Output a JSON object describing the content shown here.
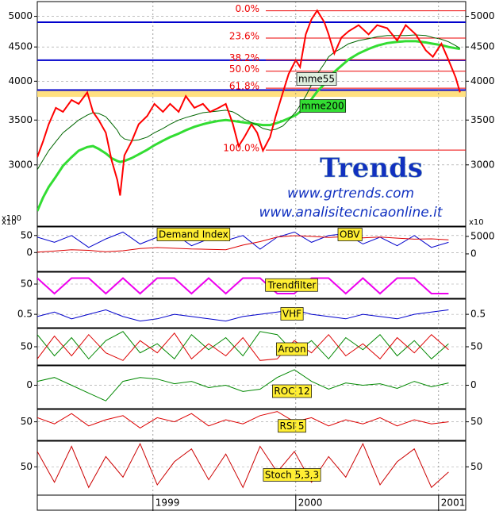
{
  "chart_data": [
    {
      "type": "line",
      "log_scale": true,
      "mirror_ticks": true,
      "y_unit": "x100",
      "xlim": [
        1998.19,
        2001.19
      ],
      "xticks": [
        1999,
        2000,
        2001
      ],
      "ylim": [
        2430,
        5260
      ],
      "yticks": [
        3000,
        3500,
        4000,
        4500,
        5000
      ],
      "x": [
        1998.19,
        1998.23,
        1998.27,
        1998.32,
        1998.37,
        1998.43,
        1998.48,
        1998.54,
        1998.58,
        1998.62,
        1998.67,
        1998.71,
        1998.75,
        1998.77,
        1998.8,
        1998.85,
        1998.9,
        1998.96,
        1999.01,
        1999.07,
        1999.12,
        1999.18,
        1999.23,
        1999.29,
        1999.35,
        1999.4,
        1999.46,
        1999.51,
        1999.56,
        1999.6,
        1999.64,
        1999.69,
        1999.73,
        1999.77,
        1999.82,
        1999.86,
        1999.91,
        1999.95,
        2000.0,
        2000.03,
        2000.07,
        2000.11,
        2000.15,
        2000.2,
        2000.23,
        2000.27,
        2000.32,
        2000.37,
        2000.44,
        2000.51,
        2000.57,
        2000.64,
        2000.71,
        2000.77,
        2000.84,
        2000.91,
        2000.96,
        2001.02,
        2001.07,
        2001.12,
        2001.15
      ],
      "series": [
        {
          "color": "#33dd33",
          "width": 3,
          "values": [
            2560,
            2680,
            2780,
            2880,
            2990,
            3080,
            3150,
            3190,
            3200,
            3170,
            3120,
            3070,
            3040,
            3030,
            3040,
            3070,
            3110,
            3160,
            3210,
            3260,
            3300,
            3340,
            3380,
            3420,
            3450,
            3470,
            3490,
            3500,
            3490,
            3480,
            3470,
            3460,
            3450,
            3440,
            3440,
            3460,
            3490,
            3520,
            3560,
            3600,
            3670,
            3760,
            3860,
            3960,
            4050,
            4130,
            4220,
            4310,
            4400,
            4470,
            4520,
            4560,
            4580,
            4590,
            4590,
            4570,
            4550,
            4530,
            4500,
            4480,
            4470
          ]
        },
        {
          "color": "#006600",
          "width": 1,
          "values": [
            2950,
            3050,
            3150,
            3250,
            3350,
            3430,
            3500,
            3560,
            3590,
            3580,
            3540,
            3460,
            3380,
            3320,
            3280,
            3260,
            3270,
            3300,
            3350,
            3400,
            3450,
            3500,
            3530,
            3560,
            3590,
            3600,
            3610,
            3620,
            3600,
            3560,
            3510,
            3470,
            3440,
            3400,
            3380,
            3390,
            3430,
            3500,
            3600,
            3680,
            3800,
            3950,
            4100,
            4250,
            4350,
            4420,
            4480,
            4550,
            4600,
            4630,
            4660,
            4680,
            4680,
            4680,
            4690,
            4680,
            4650,
            4620,
            4580,
            4520,
            4480
          ]
        },
        {
          "color": "#ff0000",
          "width": 2,
          "values": [
            3080,
            3250,
            3450,
            3650,
            3600,
            3750,
            3700,
            3850,
            3600,
            3500,
            3350,
            3050,
            2850,
            2700,
            3100,
            3250,
            3450,
            3550,
            3700,
            3600,
            3700,
            3600,
            3800,
            3650,
            3700,
            3600,
            3650,
            3700,
            3450,
            3200,
            3300,
            3450,
            3350,
            3150,
            3300,
            3550,
            3850,
            4100,
            4300,
            4200,
            4700,
            4950,
            5100,
            4900,
            4700,
            4400,
            4650,
            4750,
            4850,
            4700,
            4850,
            4800,
            4600,
            4850,
            4700,
            4450,
            4350,
            4550,
            4300,
            4050,
            3850
          ]
        }
      ],
      "band": [
        3790,
        3870
      ],
      "band_color": "#ffe080",
      "levels": [
        4900,
        4300,
        3880
      ],
      "level_color": "#0000cc",
      "fib": [
        {
          "label": "0.0%",
          "value": 5096
        },
        {
          "label": "23.6%",
          "value": 4640
        },
        {
          "label": "38.2%",
          "value": 4306
        },
        {
          "label": "50.0%",
          "value": 4140
        },
        {
          "label": "61.8%",
          "value": 3905
        },
        {
          "label": "100.0%",
          "value": 3157
        }
      ],
      "fib_color": "#ee0000",
      "annotations": [
        "mme55",
        "mme200"
      ],
      "logo": "Trends",
      "urls": [
        "www.grtrends.com",
        "www.analisitecnicaonline.it"
      ]
    },
    {
      "type": "line",
      "y_unit": "x10",
      "y2_unit": "x10",
      "ylim": [
        -55,
        75
      ],
      "yticks": [
        0,
        50
      ],
      "y2lim": [
        -5000,
        7700
      ],
      "y2ticks": [
        0,
        5000
      ],
      "x": [
        1998.19,
        1998.31,
        1998.43,
        1998.55,
        1998.67,
        1998.79,
        1998.91,
        1999.03,
        1999.15,
        1999.27,
        1999.39,
        1999.51,
        1999.63,
        1999.75,
        1999.87,
        1999.99,
        2000.11,
        2000.23,
        2000.35,
        2000.47,
        2000.59,
        2000.71,
        2000.83,
        2000.95,
        2001.07
      ],
      "series": [
        {
          "name": "Demand Index",
          "color": "#0000cc",
          "values": [
            45,
            30,
            50,
            15,
            40,
            60,
            25,
            45,
            55,
            20,
            40,
            35,
            50,
            10,
            45,
            60,
            30,
            50,
            55,
            25,
            45,
            20,
            50,
            15,
            30
          ]
        },
        {
          "name": "OBV",
          "color": "#dd0000",
          "axis": "y2",
          "values": [
            500,
            800,
            1200,
            1000,
            600,
            900,
            1500,
            1800,
            1600,
            1400,
            1300,
            1200,
            2500,
            3500,
            4800,
            5200,
            5000,
            4700,
            4900,
            4600,
            4800,
            4500,
            4200,
            4300,
            4000
          ]
        }
      ]
    },
    {
      "type": "line",
      "label": "Trendfilter",
      "ylim": [
        -10,
        100
      ],
      "yticks": [
        50
      ],
      "x": [
        1998.19,
        1998.31,
        1998.43,
        1998.55,
        1998.67,
        1998.79,
        1998.91,
        1999.03,
        1999.15,
        1999.27,
        1999.39,
        1999.51,
        1999.63,
        1999.75,
        1999.87,
        1999.99,
        2000.11,
        2000.23,
        2000.35,
        2000.47,
        2000.59,
        2000.71,
        2000.83,
        2000.95,
        2001.07
      ],
      "series": [
        {
          "color": "#ee00ee",
          "width": 2,
          "values": [
            75,
            10,
            75,
            75,
            10,
            75,
            10,
            75,
            75,
            10,
            75,
            10,
            75,
            75,
            10,
            10,
            75,
            75,
            10,
            75,
            10,
            75,
            75,
            10,
            10
          ]
        }
      ]
    },
    {
      "type": "line",
      "label": "VHF",
      "mirror_ticks": true,
      "ylim": [
        0.2,
        0.84
      ],
      "yticks": [
        0.5
      ],
      "x": [
        1998.19,
        1998.31,
        1998.43,
        1998.55,
        1998.67,
        1998.79,
        1998.91,
        1999.03,
        1999.15,
        1999.27,
        1999.39,
        1999.51,
        1999.63,
        1999.75,
        1999.87,
        1999.99,
        2000.11,
        2000.23,
        2000.35,
        2000.47,
        2000.59,
        2000.71,
        2000.83,
        2000.95,
        2001.07
      ],
      "series": [
        {
          "color": "#0000cc",
          "values": [
            0.45,
            0.55,
            0.4,
            0.5,
            0.6,
            0.45,
            0.35,
            0.4,
            0.5,
            0.45,
            0.4,
            0.35,
            0.45,
            0.5,
            0.55,
            0.6,
            0.5,
            0.45,
            0.4,
            0.5,
            0.45,
            0.4,
            0.5,
            0.55,
            0.6
          ]
        }
      ]
    },
    {
      "type": "line",
      "label": "Aroon",
      "mirror_ticks": true,
      "ylim": [
        -10,
        110
      ],
      "yticks": [
        50
      ],
      "x": [
        1998.19,
        1998.31,
        1998.43,
        1998.55,
        1998.67,
        1998.79,
        1998.91,
        1999.03,
        1999.15,
        1999.27,
        1999.39,
        1999.51,
        1999.63,
        1999.75,
        1999.87,
        1999.99,
        2000.11,
        2000.23,
        2000.35,
        2000.47,
        2000.59,
        2000.71,
        2000.83,
        2000.95,
        2001.07
      ],
      "series": [
        {
          "color": "#008800",
          "values": [
            90,
            20,
            80,
            10,
            70,
            100,
            30,
            60,
            10,
            90,
            40,
            80,
            20,
            100,
            90,
            30,
            70,
            10,
            80,
            40,
            90,
            20,
            70,
            10,
            60
          ]
        },
        {
          "color": "#dd0000",
          "values": [
            10,
            85,
            20,
            90,
            30,
            5,
            70,
            30,
            95,
            10,
            60,
            20,
            80,
            5,
            10,
            70,
            30,
            90,
            20,
            60,
            10,
            80,
            30,
            90,
            40
          ]
        }
      ]
    },
    {
      "type": "line",
      "label": "ROC 12",
      "mirror_ticks": true,
      "ylim": [
        -30,
        25
      ],
      "yticks": [
        0
      ],
      "x": [
        1998.19,
        1998.31,
        1998.43,
        1998.55,
        1998.67,
        1998.79,
        1998.91,
        1999.03,
        1999.15,
        1999.27,
        1999.39,
        1999.51,
        1999.63,
        1999.75,
        1999.87,
        1999.99,
        2000.11,
        2000.23,
        2000.35,
        2000.47,
        2000.59,
        2000.71,
        2000.83,
        2000.95,
        2001.07
      ],
      "series": [
        {
          "color": "#008800",
          "values": [
            5,
            10,
            0,
            -10,
            -20,
            5,
            10,
            8,
            2,
            5,
            -3,
            0,
            -8,
            -5,
            10,
            20,
            5,
            -5,
            3,
            0,
            2,
            -4,
            5,
            -2,
            3
          ]
        }
      ]
    },
    {
      "type": "line",
      "label": "RSI 5",
      "mirror_ticks": true,
      "ylim": [
        5,
        80
      ],
      "yticks": [
        50
      ],
      "x": [
        1998.19,
        1998.31,
        1998.43,
        1998.55,
        1998.67,
        1998.79,
        1998.91,
        1999.03,
        1999.15,
        1999.27,
        1999.39,
        1999.51,
        1999.63,
        1999.75,
        1999.87,
        1999.99,
        2000.11,
        2000.23,
        2000.35,
        2000.47,
        2000.59,
        2000.71,
        2000.83,
        2000.95,
        2001.07
      ],
      "series": [
        {
          "color": "#dd0000",
          "values": [
            60,
            45,
            70,
            40,
            55,
            65,
            35,
            60,
            50,
            70,
            40,
            55,
            45,
            65,
            75,
            50,
            60,
            40,
            55,
            45,
            60,
            40,
            55,
            45,
            50
          ]
        }
      ]
    },
    {
      "type": "line",
      "label": "Stoch 5,3,3",
      "mirror_ticks": true,
      "ylim": [
        -5,
        100
      ],
      "yticks": [
        50
      ],
      "x": [
        1998.19,
        1998.31,
        1998.43,
        1998.55,
        1998.67,
        1998.79,
        1998.91,
        1999.03,
        1999.15,
        1999.27,
        1999.39,
        1999.51,
        1999.63,
        1999.75,
        1999.87,
        1999.99,
        2000.11,
        2000.23,
        2000.35,
        2000.47,
        2000.59,
        2000.71,
        2000.83,
        2000.95,
        2001.07
      ],
      "series": [
        {
          "color": "#cc0000",
          "values": [
            80,
            20,
            90,
            10,
            70,
            30,
            95,
            15,
            60,
            85,
            25,
            75,
            10,
            90,
            40,
            80,
            20,
            70,
            30,
            95,
            15,
            60,
            85,
            10,
            40
          ]
        }
      ]
    }
  ]
}
